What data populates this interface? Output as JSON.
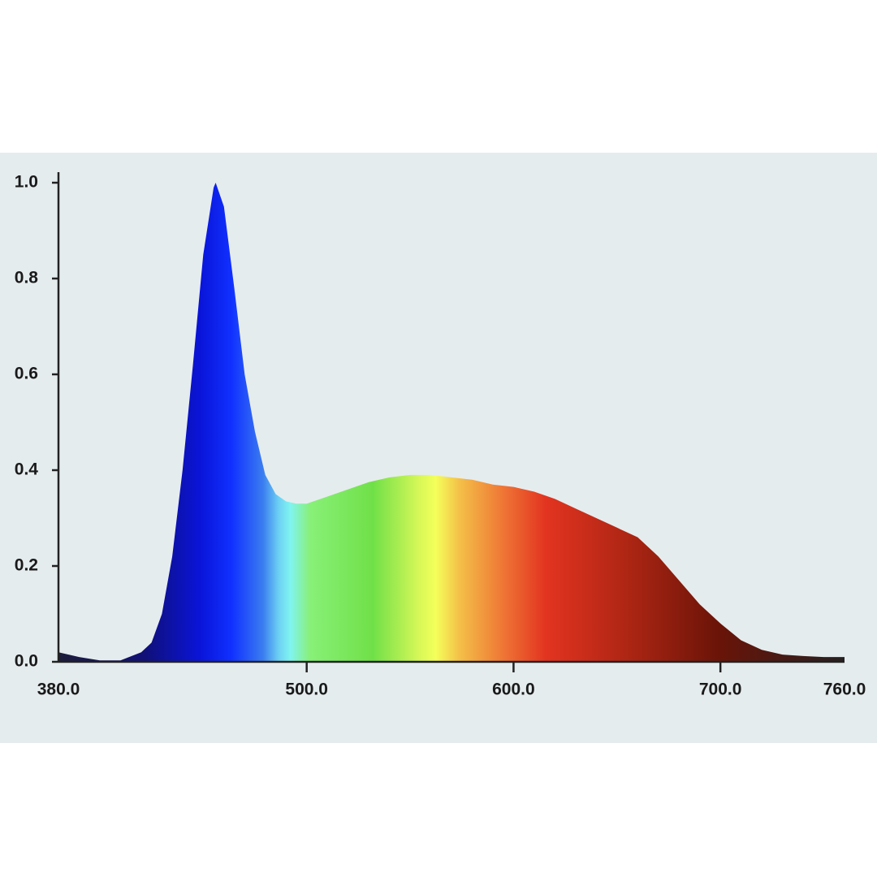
{
  "chart_data": {
    "type": "area",
    "x": [
      380,
      390,
      400,
      410,
      420,
      425,
      430,
      435,
      440,
      445,
      450,
      455,
      456,
      460,
      465,
      470,
      475,
      480,
      485,
      490,
      495,
      500,
      510,
      520,
      530,
      540,
      550,
      560,
      570,
      580,
      590,
      600,
      610,
      620,
      630,
      640,
      650,
      660,
      670,
      680,
      690,
      700,
      710,
      720,
      730,
      740,
      750,
      760
    ],
    "values": [
      0.02,
      0.01,
      0.003,
      0.003,
      0.02,
      0.04,
      0.1,
      0.22,
      0.4,
      0.62,
      0.85,
      0.99,
      1.0,
      0.95,
      0.78,
      0.6,
      0.48,
      0.39,
      0.35,
      0.335,
      0.33,
      0.33,
      0.345,
      0.36,
      0.375,
      0.385,
      0.39,
      0.39,
      0.385,
      0.38,
      0.37,
      0.365,
      0.355,
      0.34,
      0.32,
      0.3,
      0.28,
      0.26,
      0.22,
      0.17,
      0.12,
      0.08,
      0.045,
      0.025,
      0.015,
      0.012,
      0.01,
      0.01
    ],
    "xlim": [
      380,
      760
    ],
    "xticks": [
      {
        "value": 380,
        "label": "380.0"
      },
      {
        "value": 500,
        "label": "500.0"
      },
      {
        "value": 600,
        "label": "600.0"
      },
      {
        "value": 700,
        "label": "700.0"
      },
      {
        "value": 760,
        "label": "760.0"
      }
    ],
    "ylim": [
      0,
      1.0
    ],
    "yticks": [
      {
        "value": 0,
        "label": "0.0"
      },
      0.2,
      0.4,
      0.6,
      0.8,
      {
        "value": 1,
        "label": "1.0"
      }
    ]
  }
}
